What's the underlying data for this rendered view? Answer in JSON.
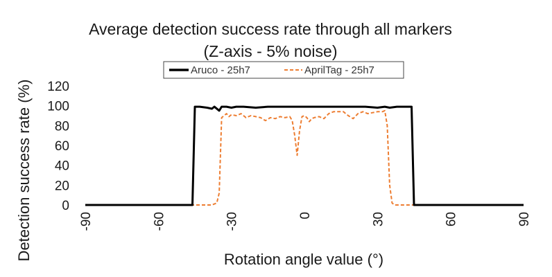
{
  "chart_data": {
    "type": "line",
    "title": "Average detection success rate through all markers",
    "subtitle": "(Z-axis - 5% noise)",
    "xlabel": "Rotation angle value (°)",
    "ylabel": "Detection success rate (%)",
    "xlim": [
      -90,
      90
    ],
    "ylim": [
      0,
      120
    ],
    "xticks": [
      -90,
      -60,
      -30,
      0,
      30,
      60,
      90
    ],
    "yticks": [
      0,
      20,
      40,
      60,
      80,
      100,
      120
    ],
    "xtick_labels": [
      "-90",
      "-60",
      "-30",
      "0",
      "30",
      "60",
      "90"
    ],
    "ytick_labels": [
      "0",
      "20",
      "40",
      "60",
      "80",
      "100",
      "120"
    ],
    "grid": false,
    "legend_position": "top",
    "series": [
      {
        "name": "Aruco - 25h7",
        "color": "#000000",
        "style": "solid",
        "points": [
          [
            -90,
            0
          ],
          [
            -46,
            0
          ],
          [
            -45,
            99
          ],
          [
            -43,
            99
          ],
          [
            -40,
            98
          ],
          [
            -38,
            97
          ],
          [
            -37,
            99
          ],
          [
            -35,
            95
          ],
          [
            -34,
            99
          ],
          [
            -32,
            99
          ],
          [
            -30,
            98
          ],
          [
            -28,
            99
          ],
          [
            -25,
            99
          ],
          [
            -20,
            98
          ],
          [
            -15,
            99
          ],
          [
            -10,
            99
          ],
          [
            -5,
            99
          ],
          [
            0,
            99
          ],
          [
            5,
            99
          ],
          [
            10,
            99
          ],
          [
            15,
            99
          ],
          [
            20,
            99
          ],
          [
            25,
            99
          ],
          [
            30,
            98
          ],
          [
            33,
            99
          ],
          [
            35,
            98
          ],
          [
            38,
            99
          ],
          [
            40,
            99
          ],
          [
            44,
            99
          ],
          [
            45,
            0
          ],
          [
            90,
            0
          ]
        ]
      },
      {
        "name": "AprilTag - 25h7",
        "color": "#ed7d31",
        "style": "dashed",
        "points": [
          [
            -90,
            0
          ],
          [
            -38,
            0
          ],
          [
            -36,
            2
          ],
          [
            -35,
            12
          ],
          [
            -34,
            88
          ],
          [
            -33,
            90
          ],
          [
            -32,
            92
          ],
          [
            -31,
            89
          ],
          [
            -30,
            91
          ],
          [
            -28,
            90
          ],
          [
            -26,
            92
          ],
          [
            -24,
            88
          ],
          [
            -22,
            90
          ],
          [
            -20,
            89
          ],
          [
            -18,
            88
          ],
          [
            -16,
            85
          ],
          [
            -14,
            88
          ],
          [
            -12,
            87
          ],
          [
            -10,
            89
          ],
          [
            -8,
            88
          ],
          [
            -6,
            89
          ],
          [
            -5,
            85
          ],
          [
            -4,
            70
          ],
          [
            -3,
            50
          ],
          [
            -2,
            75
          ],
          [
            -1,
            89
          ],
          [
            0,
            90
          ],
          [
            1,
            88
          ],
          [
            2,
            84
          ],
          [
            3,
            87
          ],
          [
            4,
            88
          ],
          [
            6,
            89
          ],
          [
            8,
            87
          ],
          [
            10,
            92
          ],
          [
            12,
            94
          ],
          [
            14,
            94
          ],
          [
            16,
            94
          ],
          [
            18,
            90
          ],
          [
            20,
            87
          ],
          [
            22,
            92
          ],
          [
            24,
            94
          ],
          [
            26,
            92
          ],
          [
            28,
            93
          ],
          [
            30,
            94
          ],
          [
            32,
            94
          ],
          [
            33,
            95
          ],
          [
            34,
            80
          ],
          [
            35,
            20
          ],
          [
            36,
            2
          ],
          [
            37,
            0
          ],
          [
            90,
            0
          ]
        ]
      }
    ]
  }
}
